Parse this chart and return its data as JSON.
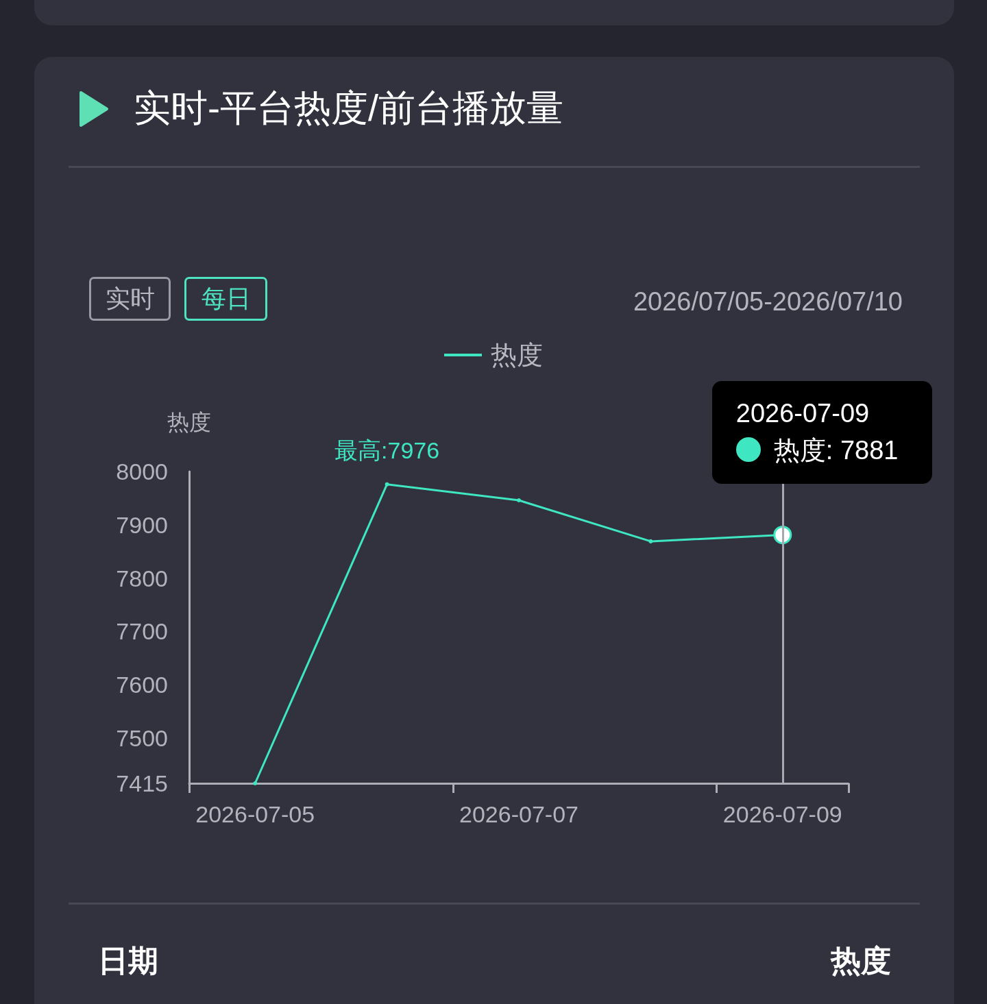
{
  "chart_data": {
    "type": "line",
    "title": "实时-平台热度/前台播放量",
    "subtitle": "2026/07/05-2026/07/10",
    "ylabel": "热度",
    "categories": [
      "2026-07-05",
      null,
      "2026-07-07",
      null,
      "2026-07-09"
    ],
    "series": [
      {
        "name": "热度",
        "color": "#3ee6c1",
        "values": [
          7415,
          7976,
          7946,
          7869,
          7881
        ],
        "value_labels": [
          null,
          "最高:7976",
          null,
          null,
          null
        ]
      }
    ],
    "ylim": [
      7415,
      8000
    ],
    "yticks": [
      7415,
      7500,
      7600,
      7700,
      7800,
      7900,
      8000
    ],
    "grid": false,
    "legend": "top",
    "marker": "circle",
    "line_style": "solid",
    "ref_lines": [
      {
        "axis": "x",
        "value": "2026-07-09",
        "color": "#a8a8b0"
      }
    ],
    "annotations": [
      "实时",
      "每日",
      "日期",
      "热度",
      {
        "text": "2026-07-09\n热度: 7881",
        "x": "2026-07-09",
        "y": 7881
      }
    ]
  }
}
